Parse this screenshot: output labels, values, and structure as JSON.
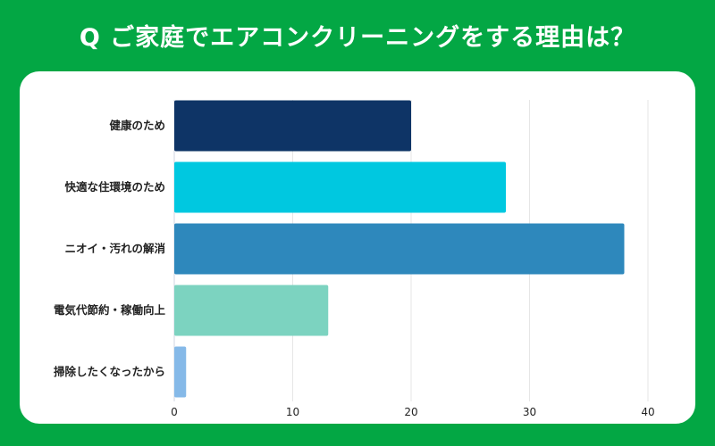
{
  "title": "Q ご家庭でエアコンクリーニングをする理由は？",
  "chart_data": {
    "type": "bar",
    "orientation": "horizontal",
    "title": "Q ご家庭でエアコンクリーニングをする理由は？",
    "categories": [
      "健康のため",
      "快適な住環境のため",
      "ニオイ・汚れの解消",
      "電気代節約・稼働向上",
      "掃除したくなったから"
    ],
    "values": [
      20,
      28,
      38,
      13,
      1
    ],
    "colors": [
      "#0e3466",
      "#00c8e0",
      "#2e88bc",
      "#7cd3c0",
      "#85b9e8"
    ],
    "xlim": [
      0,
      40
    ],
    "xticks": [
      "0",
      "10",
      "20",
      "30",
      "40"
    ],
    "grid": true,
    "xlabel": "",
    "ylabel": ""
  }
}
